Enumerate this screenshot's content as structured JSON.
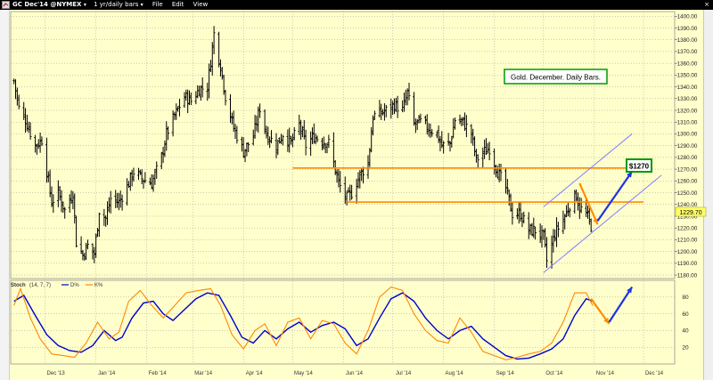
{
  "toolbar": {
    "symbol": "GC Dec'14 @NYMEX",
    "period": "1 yr/daily bars",
    "menu_file": "File",
    "menu_edit": "Edit",
    "menu_view": "View"
  },
  "annotation_title": "Gold. December. Daily Bars.",
  "target_label": "$1270",
  "last_price_label": "1229.70",
  "stoch_legend": {
    "title": "Stoch",
    "params": "(14, 7, 7)",
    "d_label": "D%",
    "k_label": "K%"
  },
  "colors": {
    "background": "#ffffcc",
    "bars": "#000000",
    "horizontal_lines": "#ff8c00",
    "channel_lines": "#7f7fff",
    "blue_arrow": "#1c33e6",
    "orange_arrow": "#ff8c00",
    "stoch_d": "#0000cc",
    "stoch_k": "#ff8800",
    "annotation_border": "#009900"
  },
  "chart_data": [
    {
      "type": "ohlc",
      "title": "Gold. December. Daily Bars.",
      "instrument": "GC Dec'14 @NYMEX",
      "period": "1 yr/daily bars",
      "x_labels": [
        "Dec '13",
        "Jan '14",
        "Feb '14",
        "Mar '14",
        "Apr '14",
        "May '14",
        "Jun '14",
        "Jul '14",
        "Aug '14",
        "Sep '14",
        "Oct '14",
        "Nov '14",
        "Dec '14"
      ],
      "y_ticks": [
        1180,
        1190,
        1200,
        1210,
        1220,
        1230,
        1240,
        1250,
        1260,
        1270,
        1280,
        1290,
        1300,
        1310,
        1320,
        1330,
        1340,
        1350,
        1360,
        1370,
        1380,
        1390,
        1400
      ],
      "ylim": [
        1177,
        1404
      ],
      "last_price": 1229.7,
      "price_path": [
        [
          "2013-11-12",
          1345
        ],
        [
          "2013-11-15",
          1322
        ],
        [
          "2013-11-19",
          1312
        ],
        [
          "2013-11-25",
          1290
        ],
        [
          "2013-11-29",
          1295
        ],
        [
          "2013-12-05",
          1242
        ],
        [
          "2013-12-09",
          1250
        ],
        [
          "2013-12-13",
          1235
        ],
        [
          "2013-12-18",
          1250
        ],
        [
          "2013-12-20",
          1208
        ],
        [
          "2013-12-24",
          1197
        ],
        [
          "2013-12-27",
          1205
        ],
        [
          "2013-12-31",
          1198
        ],
        [
          "2014-01-03",
          1235
        ],
        [
          "2014-01-07",
          1228
        ],
        [
          "2014-01-10",
          1245
        ],
        [
          "2014-01-15",
          1242
        ],
        [
          "2014-01-20",
          1255
        ],
        [
          "2014-01-24",
          1268
        ],
        [
          "2014-01-29",
          1262
        ],
        [
          "2014-02-04",
          1258
        ],
        [
          "2014-02-10",
          1280
        ],
        [
          "2014-02-13",
          1300
        ],
        [
          "2014-02-19",
          1318
        ],
        [
          "2014-02-24",
          1332
        ],
        [
          "2014-02-28",
          1328
        ],
        [
          "2014-03-05",
          1338
        ],
        [
          "2014-03-10",
          1340
        ],
        [
          "2014-03-14",
          1385
        ],
        [
          "2014-03-18",
          1358
        ],
        [
          "2014-03-21",
          1332
        ],
        [
          "2014-03-26",
          1305
        ],
        [
          "2014-04-01",
          1285
        ],
        [
          "2014-04-07",
          1298
        ],
        [
          "2014-04-11",
          1322
        ],
        [
          "2014-04-15",
          1300
        ],
        [
          "2014-04-21",
          1290
        ],
        [
          "2014-04-25",
          1300
        ],
        [
          "2014-04-30",
          1292
        ],
        [
          "2014-05-05",
          1308
        ],
        [
          "2014-05-09",
          1290
        ],
        [
          "2014-05-14",
          1298
        ],
        [
          "2014-05-19",
          1294
        ],
        [
          "2014-05-23",
          1292
        ],
        [
          "2014-05-29",
          1258
        ],
        [
          "2014-06-03",
          1245
        ],
        [
          "2014-06-06",
          1250
        ],
        [
          "2014-06-11",
          1265
        ],
        [
          "2014-06-16",
          1275
        ],
        [
          "2014-06-19",
          1315
        ],
        [
          "2014-06-24",
          1318
        ],
        [
          "2014-06-27",
          1320
        ],
        [
          "2014-07-02",
          1325
        ],
        [
          "2014-07-07",
          1320
        ],
        [
          "2014-07-10",
          1335
        ],
        [
          "2014-07-14",
          1308
        ],
        [
          "2014-07-18",
          1310
        ],
        [
          "2014-07-23",
          1305
        ],
        [
          "2014-07-28",
          1300
        ],
        [
          "2014-07-31",
          1290
        ],
        [
          "2014-08-05",
          1292
        ],
        [
          "2014-08-08",
          1312
        ],
        [
          "2014-08-13",
          1310
        ],
        [
          "2014-08-18",
          1300
        ],
        [
          "2014-08-21",
          1278
        ],
        [
          "2014-08-26",
          1285
        ],
        [
          "2014-08-29",
          1288
        ],
        [
          "2014-09-03",
          1268
        ],
        [
          "2014-09-08",
          1254
        ],
        [
          "2014-09-12",
          1232
        ],
        [
          "2014-09-17",
          1232
        ],
        [
          "2014-09-22",
          1218
        ],
        [
          "2014-09-26",
          1218
        ],
        [
          "2014-10-01",
          1212
        ],
        [
          "2014-10-03",
          1192
        ],
        [
          "2014-10-08",
          1215
        ],
        [
          "2014-10-14",
          1230
        ],
        [
          "2014-10-17",
          1240
        ],
        [
          "2014-10-21",
          1248
        ],
        [
          "2014-10-23",
          1237
        ],
        [
          "2014-10-27",
          1232
        ],
        [
          "2014-10-30",
          1222
        ]
      ],
      "horizontal_lines": [
        {
          "price": 1271,
          "from": "2014-05-01",
          "to": "2014-12-01"
        },
        {
          "price": 1242,
          "from": "2014-06-03",
          "to": "2014-12-01"
        }
      ],
      "trend_channel": [
        {
          "from": [
            "2014-10-01",
            1182
          ],
          "to": [
            "2014-12-12",
            1265
          ]
        },
        {
          "from": [
            "2014-10-01",
            1238
          ],
          "to": [
            "2014-11-24",
            1300
          ]
        }
      ],
      "arrows": [
        {
          "color": "orange",
          "from": [
            "2014-10-23",
            1258
          ],
          "to": [
            "2014-11-03",
            1223
          ]
        },
        {
          "color": "blue",
          "from": [
            "2014-11-03",
            1226
          ],
          "to": [
            "2014-11-24",
            1268
          ]
        }
      ],
      "target": 1270
    },
    {
      "type": "line",
      "title": "Stoch (14, 7, 7)",
      "y_ticks": [
        20,
        40,
        60,
        80
      ],
      "ylim": [
        0,
        100
      ],
      "series": [
        {
          "name": "D%",
          "color": "#0000cc",
          "points": [
            [
              "2013-11-12",
              75
            ],
            [
              "2013-11-18",
              82
            ],
            [
              "2013-11-25",
              58
            ],
            [
              "2013-12-02",
              35
            ],
            [
              "2013-12-09",
              22
            ],
            [
              "2013-12-16",
              16
            ],
            [
              "2013-12-23",
              14
            ],
            [
              "2013-12-30",
              22
            ],
            [
              "2014-01-06",
              40
            ],
            [
              "2014-01-13",
              28
            ],
            [
              "2014-01-17",
              32
            ],
            [
              "2014-01-23",
              55
            ],
            [
              "2014-01-30",
              73
            ],
            [
              "2014-02-05",
              75
            ],
            [
              "2014-02-11",
              60
            ],
            [
              "2014-02-17",
              52
            ],
            [
              "2014-02-24",
              65
            ],
            [
              "2014-03-03",
              78
            ],
            [
              "2014-03-10",
              85
            ],
            [
              "2014-03-17",
              82
            ],
            [
              "2014-03-24",
              58
            ],
            [
              "2014-03-31",
              32
            ],
            [
              "2014-04-07",
              25
            ],
            [
              "2014-04-14",
              40
            ],
            [
              "2014-04-21",
              30
            ],
            [
              "2014-04-28",
              42
            ],
            [
              "2014-05-05",
              50
            ],
            [
              "2014-05-12",
              38
            ],
            [
              "2014-05-19",
              46
            ],
            [
              "2014-05-26",
              50
            ],
            [
              "2014-06-02",
              42
            ],
            [
              "2014-06-09",
              22
            ],
            [
              "2014-06-16",
              30
            ],
            [
              "2014-06-23",
              55
            ],
            [
              "2014-06-30",
              78
            ],
            [
              "2014-07-07",
              85
            ],
            [
              "2014-07-14",
              75
            ],
            [
              "2014-07-21",
              55
            ],
            [
              "2014-07-28",
              40
            ],
            [
              "2014-08-04",
              30
            ],
            [
              "2014-08-11",
              40
            ],
            [
              "2014-08-18",
              45
            ],
            [
              "2014-08-25",
              30
            ],
            [
              "2014-09-01",
              20
            ],
            [
              "2014-09-08",
              10
            ],
            [
              "2014-09-15",
              6
            ],
            [
              "2014-09-22",
              7
            ],
            [
              "2014-09-29",
              12
            ],
            [
              "2014-10-06",
              18
            ],
            [
              "2014-10-13",
              30
            ],
            [
              "2014-10-20",
              58
            ],
            [
              "2014-10-27",
              78
            ],
            [
              "2014-10-31",
              75
            ]
          ]
        },
        {
          "name": "K%",
          "color": "#ff8800",
          "points": [
            [
              "2013-11-12",
              70
            ],
            [
              "2013-11-16",
              90
            ],
            [
              "2013-11-22",
              55
            ],
            [
              "2013-11-28",
              30
            ],
            [
              "2013-12-05",
              12
            ],
            [
              "2013-12-12",
              10
            ],
            [
              "2013-12-19",
              8
            ],
            [
              "2013-12-26",
              25
            ],
            [
              "2014-01-02",
              50
            ],
            [
              "2014-01-09",
              30
            ],
            [
              "2014-01-15",
              38
            ],
            [
              "2014-01-21",
              75
            ],
            [
              "2014-01-28",
              88
            ],
            [
              "2014-02-04",
              70
            ],
            [
              "2014-02-11",
              55
            ],
            [
              "2014-02-18",
              70
            ],
            [
              "2014-02-25",
              85
            ],
            [
              "2014-03-05",
              88
            ],
            [
              "2014-03-12",
              90
            ],
            [
              "2014-03-18",
              70
            ],
            [
              "2014-03-25",
              35
            ],
            [
              "2014-04-01",
              18
            ],
            [
              "2014-04-08",
              40
            ],
            [
              "2014-04-14",
              48
            ],
            [
              "2014-04-21",
              22
            ],
            [
              "2014-04-28",
              50
            ],
            [
              "2014-05-05",
              55
            ],
            [
              "2014-05-12",
              30
            ],
            [
              "2014-05-19",
              52
            ],
            [
              "2014-05-26",
              48
            ],
            [
              "2014-06-02",
              25
            ],
            [
              "2014-06-09",
              12
            ],
            [
              "2014-06-16",
              40
            ],
            [
              "2014-06-23",
              80
            ],
            [
              "2014-06-30",
              92
            ],
            [
              "2014-07-07",
              88
            ],
            [
              "2014-07-14",
              60
            ],
            [
              "2014-07-21",
              40
            ],
            [
              "2014-07-28",
              28
            ],
            [
              "2014-08-04",
              25
            ],
            [
              "2014-08-11",
              55
            ],
            [
              "2014-08-18",
              38
            ],
            [
              "2014-08-25",
              15
            ],
            [
              "2014-09-01",
              10
            ],
            [
              "2014-09-08",
              5
            ],
            [
              "2014-09-15",
              8
            ],
            [
              "2014-09-22",
              12
            ],
            [
              "2014-09-29",
              15
            ],
            [
              "2014-10-06",
              25
            ],
            [
              "2014-10-13",
              50
            ],
            [
              "2014-10-20",
              85
            ],
            [
              "2014-10-27",
              85
            ],
            [
              "2014-10-31",
              70
            ]
          ]
        }
      ],
      "arrows": [
        {
          "color": "orange",
          "from": [
            "2014-10-30",
            78
          ],
          "to": [
            "2014-11-10",
            48
          ]
        },
        {
          "color": "blue",
          "from": [
            "2014-11-10",
            50
          ],
          "to": [
            "2014-11-24",
            92
          ]
        }
      ]
    }
  ]
}
